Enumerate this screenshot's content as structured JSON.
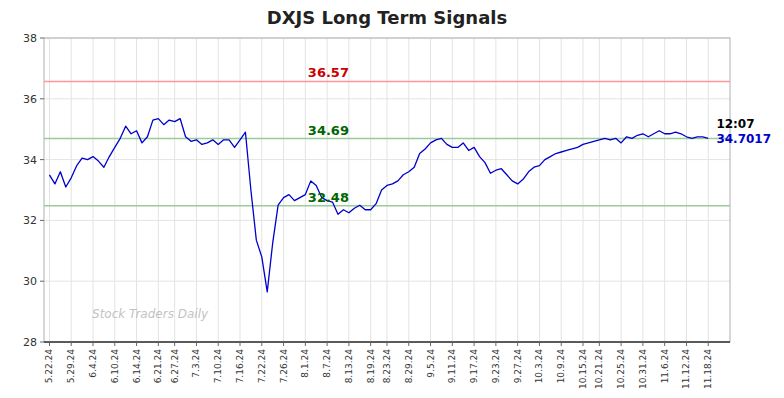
{
  "chart_data": {
    "type": "line",
    "title": "DXJS Long Term Signals",
    "ylim": [
      28,
      38
    ],
    "yticks": [
      28,
      30,
      32,
      34,
      36,
      38
    ],
    "grid": true,
    "color": "#0000cc",
    "categories": [
      "5.22.24",
      null,
      null,
      null,
      "5.29.24",
      null,
      null,
      null,
      "6.4.24",
      null,
      null,
      null,
      "6.10.24",
      null,
      null,
      null,
      "6.14.24",
      null,
      null,
      null,
      "6.21.24",
      null,
      null,
      "6.27.24",
      null,
      null,
      null,
      "7.3.24",
      null,
      null,
      null,
      "7.10.24",
      null,
      null,
      null,
      "7.16.24",
      null,
      null,
      null,
      "7.22.24",
      null,
      null,
      null,
      "7.26.24",
      null,
      null,
      null,
      "8.1.24",
      null,
      null,
      null,
      "8.7.24",
      null,
      null,
      null,
      "8.13.24",
      null,
      null,
      null,
      "8.19.24",
      null,
      null,
      "8.23.24",
      null,
      null,
      null,
      "8.29.24",
      null,
      null,
      null,
      "9.5.24",
      null,
      null,
      null,
      "9.11.24",
      null,
      null,
      null,
      "9.17.24",
      null,
      null,
      null,
      "9.23.24",
      null,
      null,
      null,
      "9.27.24",
      null,
      null,
      null,
      "10.3.24",
      null,
      null,
      null,
      "10.9.24",
      null,
      null,
      null,
      "10.15.24",
      null,
      null,
      "10.21.24",
      null,
      null,
      null,
      "10.25.24",
      null,
      null,
      null,
      "10.31.24",
      null,
      null,
      null,
      "11.6.24",
      null,
      null,
      null,
      "11.12.24",
      null,
      null,
      null,
      "11.18.24"
    ],
    "values": [
      33.5,
      33.2,
      33.6,
      33.1,
      33.4,
      33.8,
      34.05,
      34.0,
      34.1,
      33.95,
      33.75,
      34.1,
      34.4,
      34.7,
      35.1,
      34.85,
      34.95,
      34.55,
      34.75,
      35.3,
      35.35,
      35.15,
      35.3,
      35.25,
      35.35,
      34.75,
      34.6,
      34.65,
      34.5,
      34.55,
      34.65,
      34.5,
      34.65,
      34.65,
      34.4,
      34.65,
      34.9,
      33.0,
      31.35,
      30.8,
      29.65,
      31.25,
      32.5,
      32.75,
      32.85,
      32.65,
      32.75,
      32.85,
      33.3,
      33.15,
      32.75,
      32.65,
      32.6,
      32.2,
      32.35,
      32.25,
      32.4,
      32.5,
      32.35,
      32.35,
      32.55,
      33.0,
      33.15,
      33.2,
      33.3,
      33.5,
      33.6,
      33.75,
      34.2,
      34.35,
      34.55,
      34.65,
      34.7,
      34.5,
      34.4,
      34.4,
      34.55,
      34.3,
      34.4,
      34.1,
      33.9,
      33.55,
      33.65,
      33.7,
      33.5,
      33.3,
      33.2,
      33.35,
      33.6,
      33.75,
      33.8,
      34.0,
      34.1,
      34.2,
      34.25,
      34.3,
      34.35,
      34.4,
      34.5,
      34.55,
      34.6,
      34.65,
      34.7,
      34.65,
      34.7,
      34.55,
      34.75,
      34.7,
      34.8,
      34.85,
      34.75,
      34.85,
      34.95,
      34.85,
      34.85,
      34.9,
      34.85,
      34.75,
      34.7,
      34.75,
      34.75,
      34.7017
    ],
    "reference_lines": [
      {
        "value": 36.57,
        "label": "36.57",
        "color": "#ff9999",
        "label_color": "#cc0000"
      },
      {
        "value": 34.69,
        "label": "34.69",
        "color": "#99cc99",
        "label_color": "#006600"
      },
      {
        "value": 32.48,
        "label": "32.48",
        "color": "#99cc99",
        "label_color": "#006600"
      }
    ],
    "annotations": [
      {
        "text": "12:07",
        "color": "#000000"
      },
      {
        "text": "34.7017",
        "color": "#0000cc"
      }
    ],
    "watermark": {
      "text": "Stock Traders Daily",
      "color": "#aaaaaa"
    }
  }
}
